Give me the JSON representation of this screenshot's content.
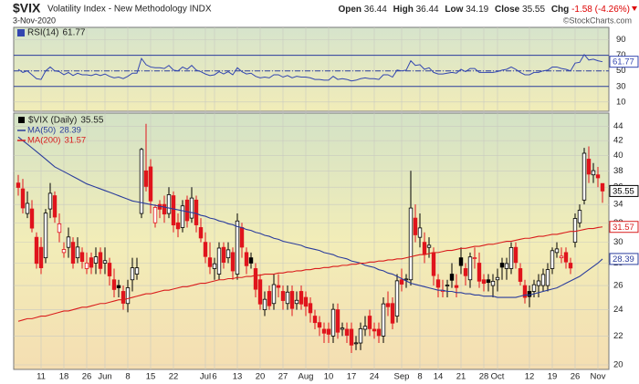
{
  "header": {
    "symbol": "$VIX",
    "name": "Volatility Index - New Methodology INDX",
    "date": "3-Nov-2020",
    "labels": {
      "open": "Open",
      "high": "High",
      "low": "Low",
      "close": "Close",
      "chg": "Chg"
    },
    "chg": -1.58,
    "chg_pct": "(-4.26%)",
    "credit": "©StockCharts.com"
  },
  "chart_data": [
    {
      "type": "line",
      "ylim": [
        -2,
        106
      ],
      "yticks": [
        10,
        30,
        50,
        70,
        90
      ],
      "bands": [
        70,
        50,
        30
      ],
      "band_color": "#2a3c9c",
      "series": [
        {
          "name": "RSI(14)",
          "color": "#3346b0",
          "values": [
            52,
            48,
            50,
            45,
            40,
            39,
            50,
            55,
            50,
            49,
            45,
            48,
            44,
            47,
            45,
            45,
            44,
            46,
            44,
            46,
            43,
            41,
            42,
            40,
            43,
            47,
            47,
            66,
            58,
            55,
            54,
            54,
            53,
            57,
            51,
            50,
            55,
            52,
            57,
            51,
            49,
            46,
            44,
            45,
            49,
            46,
            49,
            45,
            54,
            49,
            46,
            47,
            43,
            41,
            42,
            41,
            45,
            45,
            42,
            44,
            41,
            43,
            42,
            42,
            41,
            39,
            39,
            38,
            38,
            43,
            39,
            40,
            39,
            37,
            38,
            40,
            41,
            40,
            40,
            39,
            45,
            45,
            42,
            51,
            50,
            51,
            63,
            57,
            58,
            52,
            54,
            48,
            46,
            46,
            47,
            48,
            47,
            52,
            49,
            53,
            53,
            48,
            48,
            48,
            48,
            49,
            51,
            52,
            55,
            52,
            48,
            45,
            45,
            48,
            48,
            50,
            51,
            55,
            55,
            53,
            52,
            50,
            60,
            61,
            71,
            64,
            65,
            63,
            61.77
          ]
        }
      ]
    },
    {
      "type": "candlestick",
      "name": "$VIX (Daily)",
      "log_scale": true,
      "grid": true,
      "up_color": "#000000",
      "down_color": "#e0141c",
      "ylim": [
        19.7,
        46
      ],
      "yticks": [
        20,
        22,
        24,
        26,
        28,
        30,
        32,
        34,
        36,
        38,
        40,
        42,
        44
      ],
      "categories": [
        null,
        null,
        null,
        null,
        null,
        "11",
        null,
        null,
        null,
        null,
        "18",
        null,
        null,
        null,
        null,
        "26",
        null,
        null,
        null,
        "Jun",
        null,
        null,
        null,
        null,
        "8",
        null,
        null,
        null,
        null,
        "15",
        null,
        null,
        null,
        null,
        "22",
        null,
        null,
        null,
        null,
        null,
        null,
        "Jul",
        null,
        "6",
        null,
        null,
        null,
        null,
        "13",
        null,
        null,
        null,
        null,
        "20",
        null,
        null,
        null,
        null,
        "27",
        null,
        null,
        null,
        null,
        "Aug",
        null,
        null,
        null,
        null,
        "10",
        null,
        null,
        null,
        null,
        "17",
        null,
        null,
        null,
        null,
        "24",
        null,
        null,
        null,
        null,
        null,
        "Sep",
        null,
        null,
        null,
        "8",
        null,
        null,
        null,
        "14",
        null,
        null,
        null,
        null,
        "21",
        null,
        null,
        null,
        null,
        "28",
        null,
        null,
        "Oct",
        null,
        null,
        null,
        null,
        null,
        null,
        "12",
        null,
        null,
        null,
        null,
        "19",
        null,
        null,
        null,
        null,
        "26",
        null,
        null,
        null,
        null,
        "Nov",
        null
      ],
      "open": [
        36.5,
        35.8,
        33.0,
        33.5,
        30.5,
        29.5,
        28.5,
        33.5,
        35.0,
        31.0,
        29.0,
        29.5,
        30.0,
        28.5,
        29.0,
        27.5,
        28.5,
        28.0,
        29.0,
        28.0,
        28.0,
        26.5,
        26.0,
        25.5,
        24.5,
        26.5,
        27.0,
        33.0,
        38.0,
        38.5,
        32.0,
        34.0,
        34.0,
        33.0,
        35.0,
        32.0,
        31.5,
        34.5,
        32.5,
        34.5,
        31.5,
        30.0,
        28.5,
        27.5,
        27.0,
        29.5,
        28.5,
        29.0,
        27.0,
        31.5,
        29.0,
        28.5,
        27.5,
        26.5,
        24.0,
        25.5,
        24.5,
        26.0,
        25.5,
        24.5,
        25.5,
        24.5,
        25.5,
        25.0,
        24.5,
        23.5,
        23.0,
        22.5,
        22.5,
        22.0,
        24.0,
        22.5,
        22.5,
        22.5,
        21.5,
        21.5,
        22.5,
        23.5,
        22.5,
        22.5,
        22.0,
        24.5,
        24.5,
        23.5,
        26.5,
        26.5,
        26.5,
        32.5,
        30.5,
        30.0,
        29.5,
        29.0,
        26.5,
        25.5,
        26.0,
        27.0,
        26.0,
        28.5,
        27.5,
        26.5,
        28.5,
        28.0,
        26.5,
        26.5,
        26.0,
        26.5,
        28.0,
        27.5,
        27.5,
        29.5,
        27.5,
        26.0,
        25.5,
        25.5,
        26.0,
        26.0,
        26.0,
        27.5,
        29.0,
        28.5,
        29.0,
        28.0,
        30.0,
        32.0,
        34.5,
        39.5,
        37.5,
        37.5,
        36.44
      ],
      "high": [
        37.5,
        37.0,
        35.5,
        34.5,
        31.0,
        30.5,
        33.5,
        36.5,
        35.5,
        33.0,
        30.0,
        31.5,
        30.5,
        30.5,
        29.5,
        29.0,
        29.0,
        29.5,
        29.5,
        29.5,
        28.5,
        27.5,
        26.5,
        26.0,
        26.5,
        28.5,
        28.5,
        41.0,
        44.4,
        39.5,
        34.0,
        34.5,
        35.0,
        36.0,
        35.5,
        33.0,
        34.5,
        35.0,
        36.0,
        35.0,
        32.5,
        31.0,
        30.0,
        28.5,
        30.0,
        30.0,
        30.0,
        29.5,
        33.0,
        32.0,
        29.5,
        29.0,
        28.0,
        27.0,
        25.5,
        26.0,
        27.0,
        27.0,
        26.0,
        26.0,
        26.0,
        25.5,
        26.0,
        25.5,
        25.0,
        24.0,
        23.5,
        23.0,
        23.0,
        24.5,
        24.5,
        23.0,
        23.0,
        23.0,
        22.0,
        23.0,
        23.5,
        24.0,
        23.0,
        23.0,
        25.0,
        25.5,
        25.0,
        27.0,
        27.5,
        27.0,
        38.0,
        34.0,
        33.0,
        31.0,
        30.5,
        29.5,
        27.0,
        26.5,
        26.5,
        28.0,
        27.0,
        29.5,
        28.0,
        29.0,
        29.5,
        29.0,
        27.0,
        27.0,
        27.0,
        27.5,
        28.5,
        28.5,
        30.0,
        30.0,
        28.0,
        26.5,
        26.0,
        26.5,
        27.0,
        27.5,
        28.0,
        29.5,
        30.0,
        29.5,
        29.5,
        28.5,
        33.0,
        34.0,
        41.0,
        41.2,
        39.0,
        38.5,
        36.44
      ],
      "low": [
        35.0,
        33.0,
        32.5,
        31.0,
        27.5,
        27.0,
        28.0,
        32.5,
        32.0,
        30.0,
        28.5,
        28.5,
        27.5,
        28.0,
        27.5,
        27.0,
        27.0,
        27.0,
        27.0,
        27.0,
        26.0,
        25.0,
        25.0,
        24.0,
        23.8,
        25.5,
        26.5,
        32.5,
        35.5,
        33.0,
        31.5,
        32.5,
        32.0,
        32.5,
        31.0,
        30.5,
        31.0,
        31.5,
        32.0,
        31.0,
        30.0,
        28.0,
        27.0,
        26.5,
        26.5,
        27.5,
        28.0,
        26.5,
        26.5,
        28.5,
        27.0,
        27.5,
        25.0,
        24.0,
        23.5,
        24.0,
        24.0,
        25.0,
        24.0,
        24.0,
        23.5,
        24.0,
        24.0,
        23.5,
        23.0,
        22.5,
        22.0,
        21.5,
        21.5,
        21.5,
        21.8,
        22.0,
        21.5,
        20.8,
        21.0,
        21.0,
        22.0,
        22.0,
        21.8,
        21.5,
        21.5,
        23.5,
        22.5,
        23.0,
        25.5,
        25.8,
        26.0,
        30.0,
        29.5,
        28.0,
        28.5,
        26.0,
        25.0,
        25.0,
        25.0,
        25.8,
        25.0,
        27.0,
        26.0,
        25.8,
        27.5,
        25.8,
        25.5,
        25.5,
        25.0,
        25.5,
        26.5,
        26.5,
        27.0,
        27.5,
        26.0,
        24.5,
        24.2,
        25.0,
        25.0,
        25.5,
        25.5,
        27.0,
        28.5,
        28.0,
        27.5,
        27.0,
        29.5,
        31.5,
        34.0,
        36.5,
        36.5,
        36.0,
        34.19
      ],
      "close": [
        35.97,
        33.61,
        34.12,
        31.44,
        27.98,
        27.57,
        33.04,
        35.28,
        32.61,
        31.89,
        29.3,
        30.53,
        27.99,
        29.53,
        28.16,
        28.01,
        27.62,
        28.59,
        27.51,
        28.23,
        26.84,
        25.66,
        25.81,
        24.52,
        25.81,
        27.57,
        27.57,
        40.79,
        36.09,
        34.4,
        33.67,
        33.47,
        32.94,
        35.12,
        31.77,
        31.37,
        33.84,
        32.22,
        34.73,
        31.78,
        30.43,
        28.62,
        27.68,
        27.94,
        29.43,
        28.08,
        29.26,
        27.29,
        32.19,
        29.52,
        27.76,
        28.0,
        25.68,
        24.46,
        24.84,
        24.32,
        26.08,
        25.84,
        24.74,
        25.44,
        24.1,
        24.76,
        24.46,
        24.28,
        23.76,
        23.0,
        22.65,
        22.21,
        22.13,
        24.03,
        22.28,
        22.59,
        22.05,
        21.35,
        21.51,
        22.54,
        22.72,
        22.54,
        22.37,
        22.03,
        24.47,
        24.24,
        22.96,
        26.41,
        26.12,
        26.57,
        33.6,
        30.75,
        31.46,
        28.81,
        29.71,
        26.87,
        25.85,
        25.59,
        26.04,
        26.46,
        25.83,
        27.78,
        26.86,
        28.58,
        28.51,
        26.38,
        26.19,
        26.27,
        26.37,
        26.7,
        27.63,
        27.96,
        29.48,
        28.06,
        26.36,
        25.0,
        25.07,
        26.07,
        26.4,
        26.97,
        27.41,
        29.18,
        29.35,
        28.65,
        28.11,
        27.55,
        32.46,
        33.35,
        40.28,
        37.59,
        38.02,
        37.13,
        35.55
      ],
      "series": [
        {
          "name": "MA(50)",
          "color": "#2a3c9c",
          "values": [
            42.5,
            42.0,
            41.5,
            41.0,
            40.5,
            40.0,
            39.5,
            39.0,
            38.5,
            38.2,
            37.9,
            37.6,
            37.3,
            37.0,
            36.7,
            36.4,
            36.2,
            36.0,
            35.8,
            35.6,
            35.4,
            35.2,
            35.0,
            34.8,
            34.6,
            34.4,
            34.3,
            34.2,
            34.1,
            34.0,
            33.9,
            33.8,
            33.7,
            33.6,
            33.5,
            33.4,
            33.3,
            33.2,
            33.1,
            33.0,
            32.8,
            32.7,
            32.5,
            32.4,
            32.2,
            32.1,
            31.9,
            31.8,
            31.6,
            31.5,
            31.3,
            31.2,
            31.0,
            30.9,
            30.7,
            30.6,
            30.4,
            30.3,
            30.1,
            30.0,
            29.9,
            29.8,
            29.7,
            29.5,
            29.4,
            29.3,
            29.2,
            29.0,
            28.9,
            28.8,
            28.6,
            28.5,
            28.4,
            28.2,
            28.1,
            28.0,
            27.8,
            27.7,
            27.6,
            27.4,
            27.3,
            27.1,
            27.0,
            26.8,
            26.6,
            26.4,
            26.2,
            26.1,
            26.0,
            25.9,
            25.8,
            25.7,
            25.6,
            25.6,
            25.5,
            25.5,
            25.4,
            25.4,
            25.3,
            25.3,
            25.2,
            25.2,
            25.1,
            25.1,
            25.1,
            25.0,
            25.0,
            25.0,
            25.0,
            25.0,
            25.1,
            25.2,
            25.2,
            25.3,
            25.4,
            25.5,
            25.6,
            25.7,
            25.8,
            26.0,
            26.2,
            26.4,
            26.6,
            26.8,
            27.1,
            27.4,
            27.7,
            28.0,
            28.39
          ]
        },
        {
          "name": "MA(200)",
          "color": "#d91c1c",
          "values": [
            23.1,
            23.2,
            23.3,
            23.3,
            23.4,
            23.5,
            23.5,
            23.6,
            23.7,
            23.8,
            23.9,
            23.9,
            24.0,
            24.1,
            24.2,
            24.2,
            24.3,
            24.4,
            24.5,
            24.5,
            24.6,
            24.7,
            24.8,
            24.8,
            24.9,
            25.0,
            25.1,
            25.2,
            25.3,
            25.3,
            25.4,
            25.5,
            25.6,
            25.6,
            25.7,
            25.8,
            25.9,
            25.9,
            26.0,
            26.1,
            26.2,
            26.2,
            26.3,
            26.4,
            26.5,
            26.5,
            26.6,
            26.6,
            26.7,
            26.7,
            26.8,
            26.8,
            26.9,
            26.9,
            27.0,
            27.0,
            27.0,
            27.1,
            27.1,
            27.2,
            27.2,
            27.3,
            27.3,
            27.4,
            27.4,
            27.5,
            27.5,
            27.6,
            27.6,
            27.7,
            27.7,
            27.8,
            27.8,
            27.9,
            27.9,
            28.0,
            28.0,
            28.1,
            28.1,
            28.2,
            28.2,
            28.3,
            28.3,
            28.4,
            28.4,
            28.5,
            28.6,
            28.7,
            28.8,
            28.8,
            28.9,
            29.0,
            29.0,
            29.1,
            29.2,
            29.2,
            29.3,
            29.4,
            29.4,
            29.5,
            29.6,
            29.6,
            29.7,
            29.8,
            29.8,
            29.9,
            30.0,
            30.1,
            30.1,
            30.2,
            30.3,
            30.4,
            30.4,
            30.5,
            30.6,
            30.6,
            30.7,
            30.8,
            30.8,
            30.9,
            31.0,
            31.1,
            31.1,
            31.2,
            31.3,
            31.4,
            31.4,
            31.5,
            31.57
          ]
        }
      ]
    }
  ]
}
